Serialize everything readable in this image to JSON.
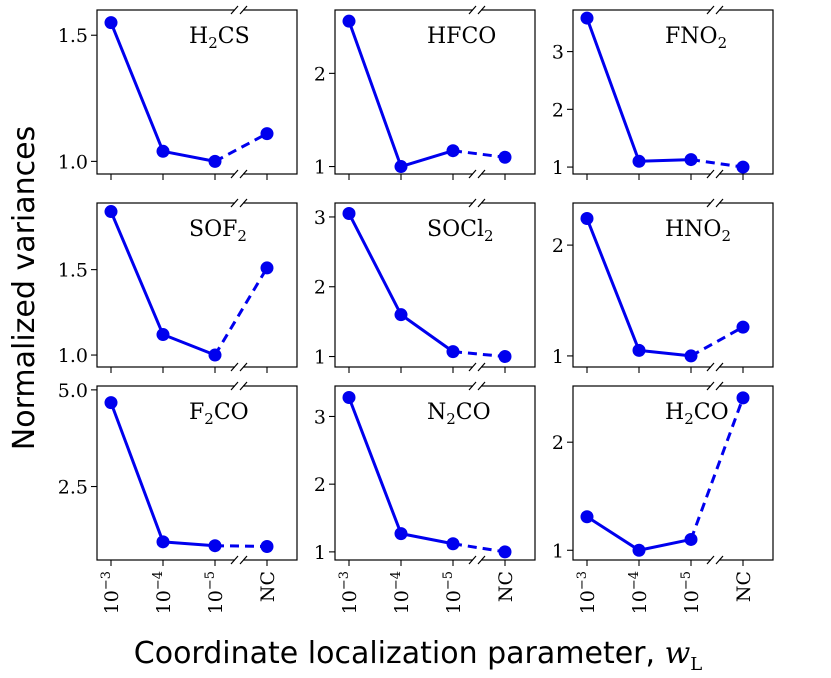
{
  "chart_data": {
    "type": "line",
    "title": "",
    "xlabel": "Coordinate localization parameter, ",
    "xlabel_symbol": "w",
    "xlabel_subscript": "L",
    "ylabel": "Normalized variances",
    "categories": [
      "10",
      "10",
      "10",
      "NC"
    ],
    "category_exponents": [
      "−3",
      "−4",
      "−5",
      ""
    ],
    "color": "#0000ee",
    "panels": [
      {
        "name": "H2CS",
        "label_base": "H",
        "label_sub": "2",
        "label_tail": "CS",
        "values": [
          1.55,
          1.04,
          1.0,
          1.11
        ],
        "ylim": [
          0.95,
          1.6
        ],
        "yticks": [
          1.0,
          1.5
        ],
        "ytick_labels": [
          "1.0",
          "1.5"
        ]
      },
      {
        "name": "HFCO",
        "label_base": "HFCO",
        "label_sub": "",
        "label_tail": "",
        "values": [
          2.56,
          1.0,
          1.17,
          1.1
        ],
        "ylim": [
          0.92,
          2.68
        ],
        "yticks": [
          1,
          2
        ],
        "ytick_labels": [
          "1",
          "2"
        ]
      },
      {
        "name": "FNO2",
        "label_base": "FNO",
        "label_sub": "2",
        "label_tail": "",
        "values": [
          3.58,
          1.1,
          1.13,
          1.0
        ],
        "ylim": [
          0.88,
          3.72
        ],
        "yticks": [
          1,
          2,
          3
        ],
        "ytick_labels": [
          "1",
          "2",
          "3"
        ]
      },
      {
        "name": "SOF2",
        "label_base": "SOF",
        "label_sub": "2",
        "label_tail": "",
        "values": [
          1.84,
          1.12,
          1.0,
          1.51
        ],
        "ylim": [
          0.93,
          1.89
        ],
        "yticks": [
          1.0,
          1.5
        ],
        "ytick_labels": [
          "1.0",
          "1.5"
        ]
      },
      {
        "name": "SOCl2",
        "label_base": "SOCl",
        "label_sub": "2",
        "label_tail": "",
        "values": [
          3.05,
          1.6,
          1.07,
          1.0
        ],
        "ylim": [
          0.85,
          3.2
        ],
        "yticks": [
          1,
          2,
          3
        ],
        "ytick_labels": [
          "1",
          "2",
          "3"
        ]
      },
      {
        "name": "HNO2",
        "label_base": "HNO",
        "label_sub": "2",
        "label_tail": "",
        "values": [
          2.24,
          1.05,
          1.0,
          1.26
        ],
        "ylim": [
          0.9,
          2.38
        ],
        "yticks": [
          1,
          2
        ],
        "ytick_labels": [
          "1",
          "2"
        ]
      },
      {
        "name": "F2CO",
        "label_base": "F",
        "label_sub": "2",
        "label_tail": "CO",
        "values": [
          4.67,
          1.07,
          0.97,
          0.95
        ],
        "ylim": [
          0.6,
          5.1
        ],
        "yticks": [
          2.5,
          5.0
        ],
        "ytick_labels": [
          "2.5",
          "5.0"
        ]
      },
      {
        "name": "N2CO",
        "label_base": "N",
        "label_sub": "2",
        "label_tail": "CO",
        "values": [
          3.28,
          1.27,
          1.12,
          1.0
        ],
        "ylim": [
          0.88,
          3.45
        ],
        "yticks": [
          1,
          2,
          3
        ],
        "ytick_labels": [
          "1",
          "2",
          "3"
        ]
      },
      {
        "name": "H2CO",
        "label_base": "H",
        "label_sub": "2",
        "label_tail": "CO",
        "values": [
          1.31,
          1.0,
          1.1,
          2.41
        ],
        "ylim": [
          0.91,
          2.52
        ],
        "yticks": [
          1,
          2
        ],
        "ytick_labels": [
          "1",
          "2"
        ]
      }
    ]
  }
}
